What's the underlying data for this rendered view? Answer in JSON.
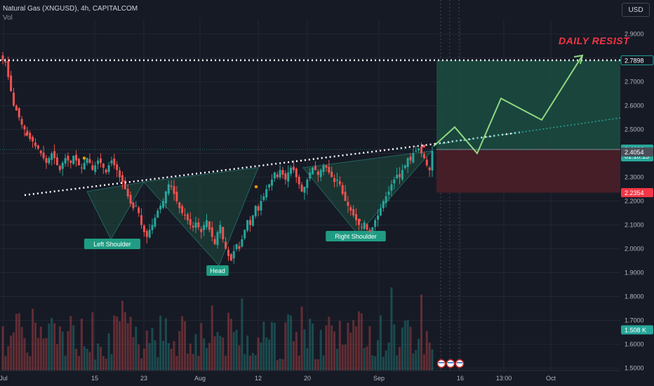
{
  "header": {
    "symbol_line": "Natural Gas (XNGUSD), 4h, CAPITALCOM",
    "vol_label": "Vol"
  },
  "currency_button": "USD",
  "annotation": {
    "daily_resistance": "DAILY RESIST"
  },
  "colors": {
    "background": "#161a25",
    "up": "#26a69a",
    "down": "#ef5350",
    "pattern_fill": "#1e4a3e",
    "projection": "#8fd982",
    "resistance_line": "#ffffff",
    "target_zone": "#1b4a3f",
    "stop_zone": "#4a1f28"
  },
  "chart_data": {
    "type": "candlestick",
    "x_tick_labels": [
      "Jul",
      "15",
      "23",
      "Aug",
      "12",
      "20",
      "Sep",
      "16",
      "13:00",
      "Oct"
    ],
    "y_tick_labels": [
      "2.9000",
      "2.8000",
      "2.7000",
      "2.6000",
      "2.5000",
      "2.4000",
      "2.3000",
      "2.2000",
      "2.1000",
      "2.0000",
      "1.9000",
      "1.8000",
      "1.7000",
      "1.6000",
      "1.5000"
    ],
    "ylim": [
      1.49,
      2.96
    ],
    "price_labels": [
      {
        "value": "2.7898",
        "kind": "target"
      },
      {
        "value": "2.4160",
        "kind": "last",
        "countdown": "01:10:15"
      },
      {
        "value": "2.4054",
        "kind": "level"
      },
      {
        "value": "2.2354",
        "kind": "stop"
      },
      {
        "value": "1.508 K",
        "kind": "volume"
      }
    ],
    "levels": {
      "daily_resistance": 2.7898,
      "entry": 2.416,
      "stop": 2.2354
    },
    "pattern": {
      "name": "Inverse Head and Shoulders",
      "labels": [
        "Left Shoulder",
        "Head",
        "Right Shoulder"
      ],
      "points": [
        [
          2.24,
          2.04,
          2.28
        ],
        [
          2.28,
          1.93,
          2.34
        ],
        [
          2.34,
          2.06,
          2.41
        ]
      ]
    },
    "projection_path": [
      2.43,
      2.51,
      2.4,
      2.63,
      2.54,
      2.81
    ],
    "closes": [
      2.79,
      2.78,
      2.72,
      2.66,
      2.6,
      2.58,
      2.55,
      2.52,
      2.5,
      2.48,
      2.46,
      2.45,
      2.43,
      2.42,
      2.4,
      2.38,
      2.36,
      2.38,
      2.4,
      2.38,
      2.35,
      2.33,
      2.36,
      2.38,
      2.37,
      2.36,
      2.39,
      2.37,
      2.35,
      2.34,
      2.36,
      2.38,
      2.36,
      2.33,
      2.35,
      2.37,
      2.36,
      2.34,
      2.32,
      2.35,
      2.37,
      2.35,
      2.33,
      2.3,
      2.28,
      2.25,
      2.22,
      2.19,
      2.17,
      2.18,
      2.15,
      2.1,
      2.07,
      2.05,
      2.08,
      2.1,
      2.13,
      2.16,
      2.18,
      2.2,
      2.24,
      2.27,
      2.26,
      2.23,
      2.2,
      2.17,
      2.15,
      2.14,
      2.12,
      2.1,
      2.09,
      2.11,
      2.09,
      2.07,
      2.1,
      2.12,
      2.08,
      2.05,
      2.02,
      2.07,
      2.1,
      2.04,
      2.0,
      1.97,
      1.95,
      1.99,
      2.02,
      2.0,
      2.04,
      2.08,
      2.12,
      2.1,
      2.14,
      2.18,
      2.16,
      2.2,
      2.22,
      2.25,
      2.27,
      2.29,
      2.32,
      2.3,
      2.33,
      2.31,
      2.29,
      2.32,
      2.34,
      2.33,
      2.3,
      2.27,
      2.24,
      2.26,
      2.29,
      2.32,
      2.34,
      2.33,
      2.31,
      2.33,
      2.35,
      2.34,
      2.32,
      2.3,
      2.28,
      2.29,
      2.27,
      2.23,
      2.2,
      2.18,
      2.16,
      2.14,
      2.12,
      2.1,
      2.09,
      2.11,
      2.08,
      2.07,
      2.09,
      2.12,
      2.14,
      2.17,
      2.2,
      2.22,
      2.24,
      2.27,
      2.29,
      2.31,
      2.3,
      2.33,
      2.35,
      2.38,
      2.37,
      2.4,
      2.41,
      2.42,
      2.4,
      2.38,
      2.35,
      2.33,
      2.41
    ]
  }
}
